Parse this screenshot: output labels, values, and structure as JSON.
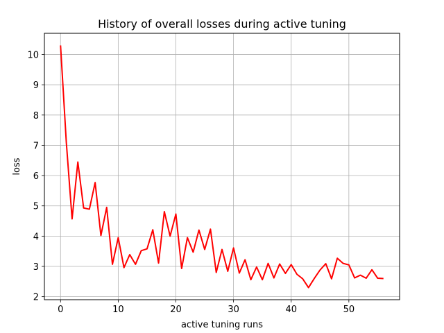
{
  "chart_data": {
    "type": "line",
    "title": "History of overall losses during active tuning",
    "xlabel": "active tuning runs",
    "ylabel": "loss",
    "xlim": [
      -2.8,
      58.8
    ],
    "ylim": [
      1.9,
      10.7
    ],
    "xticks": [
      0,
      10,
      20,
      30,
      40,
      50
    ],
    "yticks": [
      2,
      3,
      4,
      5,
      6,
      7,
      8,
      9,
      10
    ],
    "grid": true,
    "series": [
      {
        "color": "#ff0000",
        "x": [
          0,
          1,
          2,
          3,
          4,
          5,
          6,
          7,
          8,
          9,
          10,
          11,
          12,
          13,
          14,
          15,
          16,
          17,
          18,
          19,
          20,
          21,
          22,
          23,
          24,
          25,
          26,
          27,
          28,
          29,
          30,
          31,
          32,
          33,
          34,
          35,
          36,
          37,
          38,
          39,
          40,
          41,
          42,
          43,
          44,
          45,
          46,
          47,
          48,
          49,
          50,
          51,
          52,
          53,
          54,
          55,
          56
        ],
        "values": [
          10.3,
          7.1,
          4.57,
          6.45,
          4.93,
          4.89,
          5.77,
          4.02,
          4.95,
          3.07,
          3.95,
          2.96,
          3.39,
          3.07,
          3.52,
          3.58,
          4.21,
          3.11,
          4.81,
          4.0,
          4.73,
          2.93,
          3.95,
          3.47,
          4.2,
          3.56,
          4.23,
          2.8,
          3.56,
          2.84,
          3.61,
          2.78,
          3.22,
          2.56,
          2.98,
          2.56,
          3.1,
          2.62,
          3.08,
          2.77,
          3.06,
          2.74,
          2.59,
          2.3,
          2.6,
          2.88,
          3.09,
          2.59,
          3.27,
          3.1,
          3.05,
          2.62,
          2.71,
          2.61,
          2.89,
          2.61,
          2.6
        ]
      }
    ]
  }
}
